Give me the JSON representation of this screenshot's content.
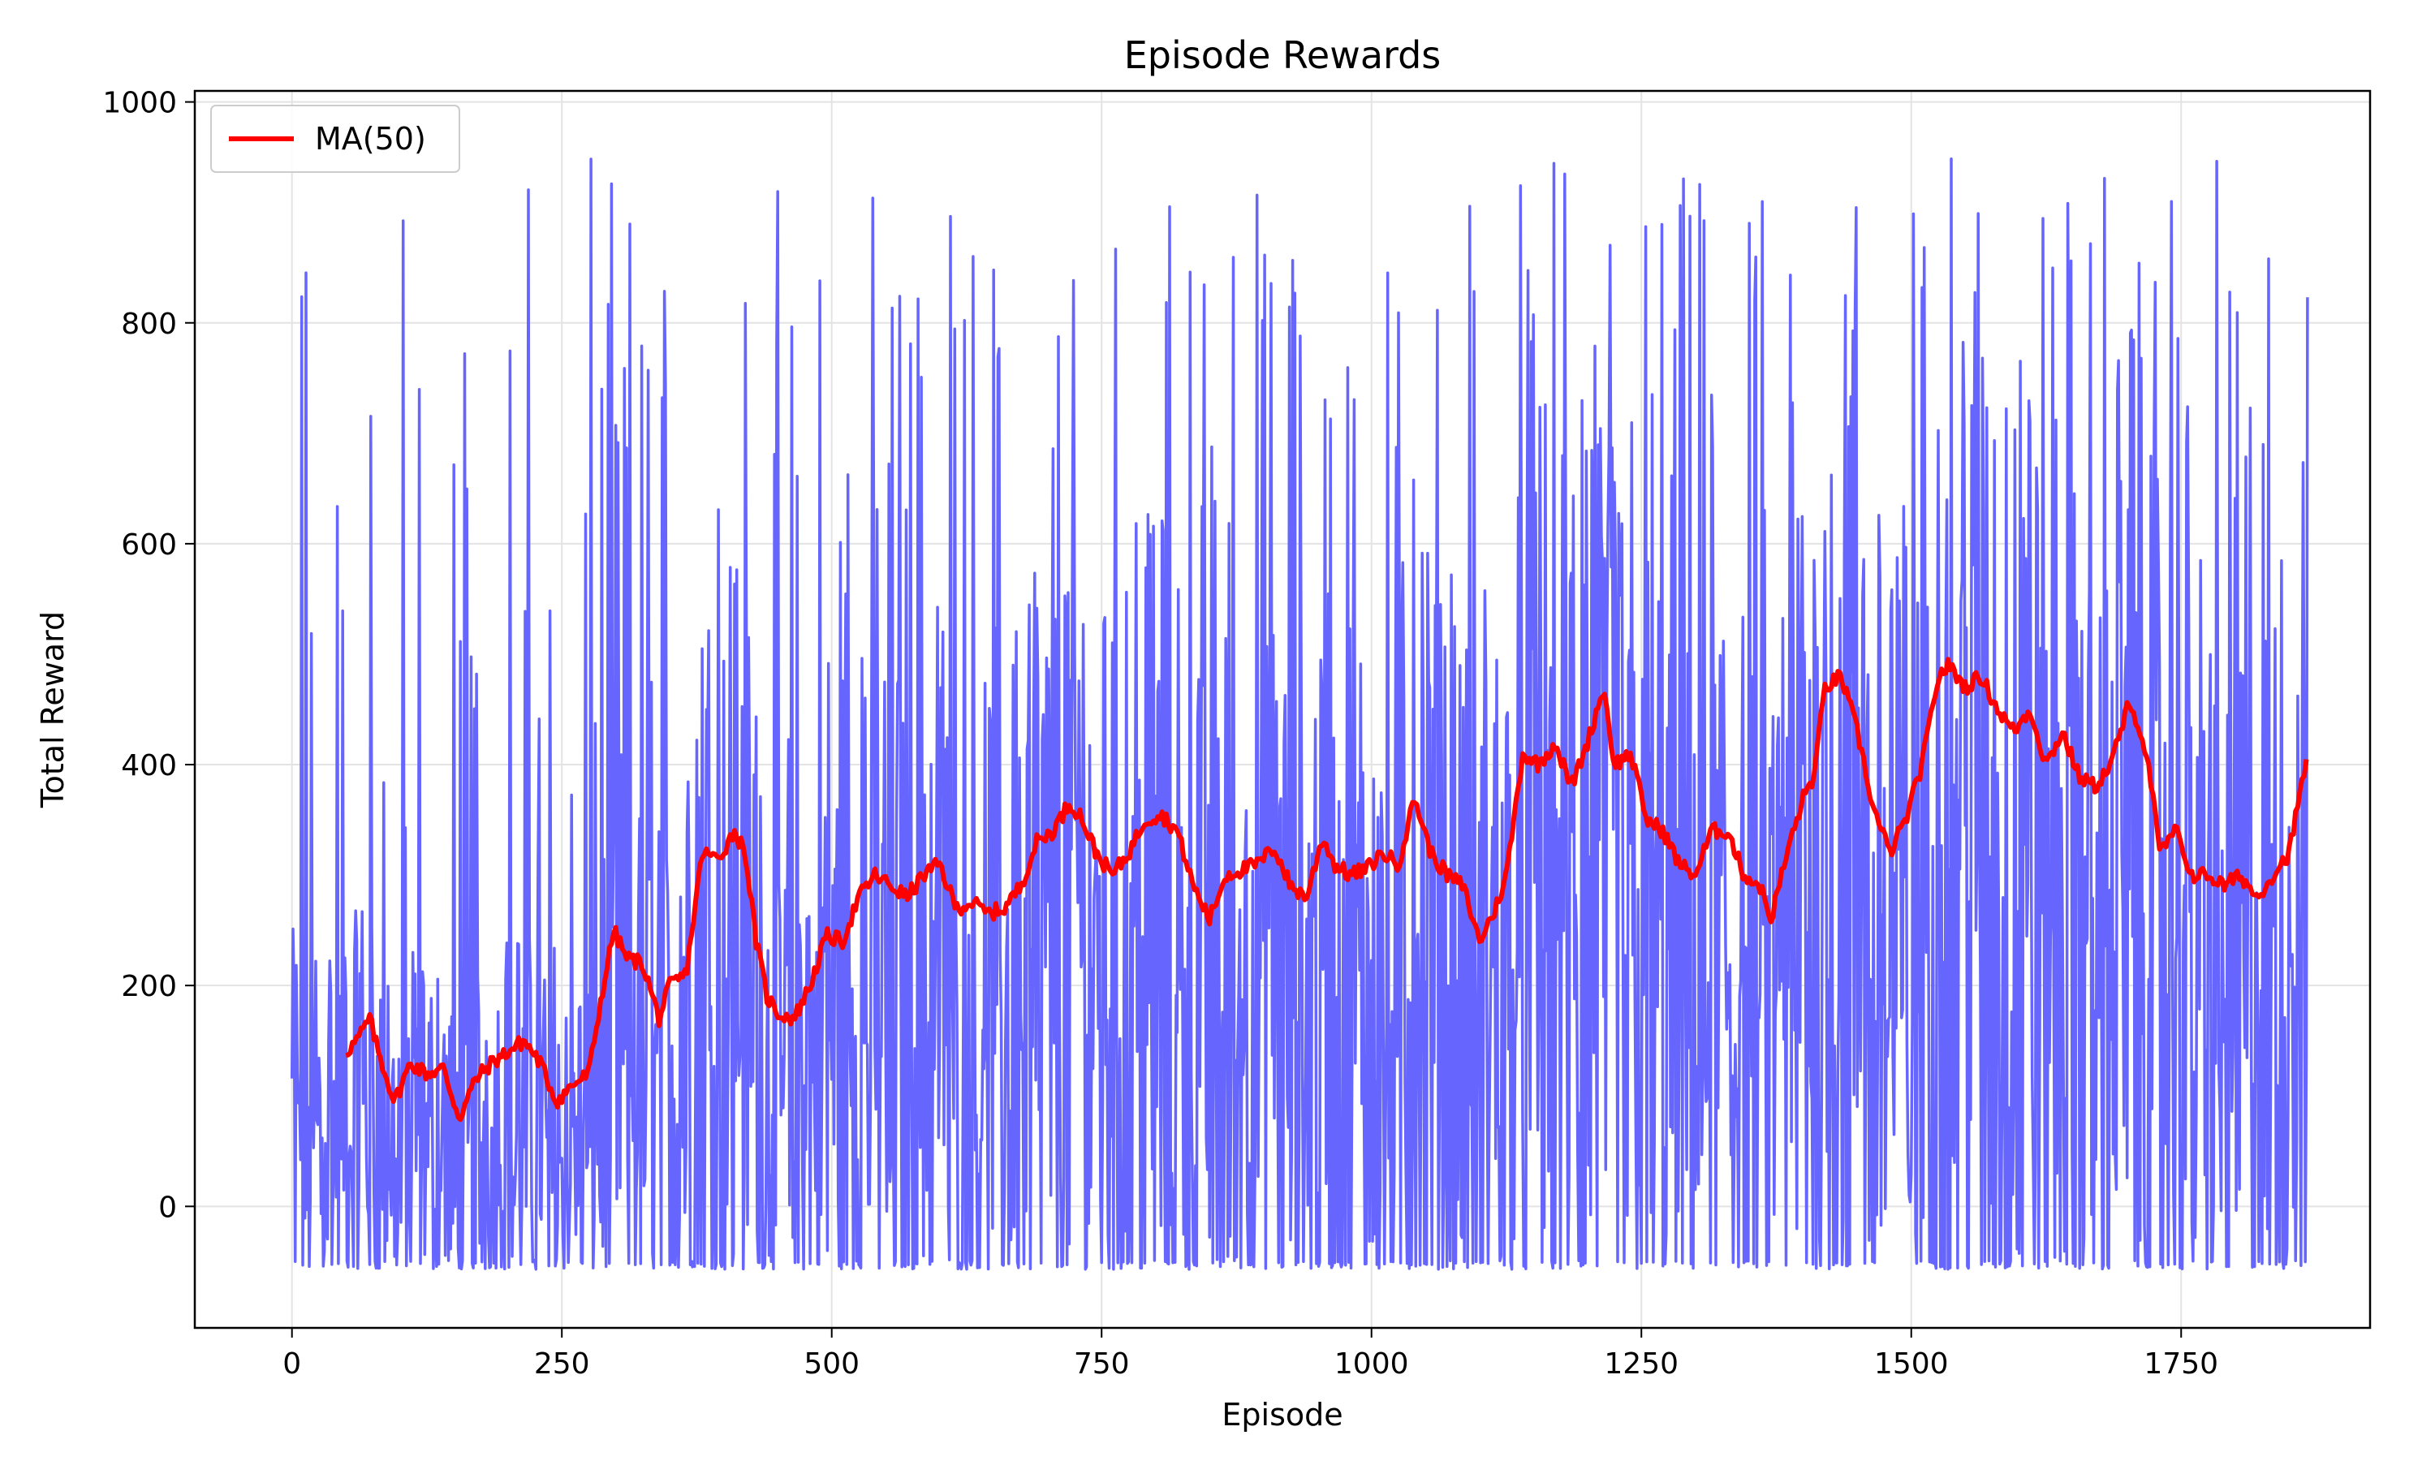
{
  "chart_data": {
    "type": "line",
    "title": "Episode Rewards",
    "xlabel": "Episode",
    "ylabel": "Total Reward",
    "xlim": [
      -90,
      1925
    ],
    "ylim": [
      -110,
      1010
    ],
    "x_ticks": [
      0,
      250,
      500,
      750,
      1000,
      1250,
      1500,
      1750
    ],
    "y_ticks": [
      0,
      200,
      400,
      600,
      800,
      1000
    ],
    "grid": true,
    "legend_position": "top-left",
    "n_episodes": 1868,
    "reward_min": -57,
    "raw_color": "#6666ff",
    "ma_color": "#ff0000",
    "series": [
      {
        "name": "",
        "kind": "raw_rewards",
        "note": "per-episode total reward, 0..1867, highly noisy between about -57 and 960"
      },
      {
        "name": "MA(50)",
        "kind": "moving_average",
        "x": [
          50,
          60,
          72,
          80,
          95,
          110,
          125,
          140,
          155,
          170,
          185,
          200,
          215,
          230,
          245,
          260,
          275,
          285,
          298,
          310,
          325,
          340,
          350,
          365,
          380,
          395,
          410,
          420,
          430,
          440,
          450,
          465,
          480,
          495,
          510,
          525,
          540,
          555,
          570,
          585,
          600,
          615,
          630,
          645,
          660,
          675,
          690,
          705,
          720,
          730,
          745,
          760,
          775,
          790,
          805,
          820,
          835,
          850,
          865,
          880,
          895,
          910,
          925,
          940,
          955,
          965,
          980,
          995,
          1010,
          1025,
          1040,
          1055,
          1070,
          1085,
          1100,
          1115,
          1125,
          1140,
          1155,
          1170,
          1185,
          1200,
          1215,
          1225,
          1240,
          1255,
          1270,
          1285,
          1300,
          1315,
          1330,
          1345,
          1360,
          1370,
          1385,
          1400,
          1410,
          1420,
          1435,
          1450,
          1465,
          1480,
          1495,
          1510,
          1525,
          1535,
          1550,
          1565,
          1580,
          1595,
          1610,
          1625,
          1640,
          1655,
          1670,
          1685,
          1700,
          1710,
          1720,
          1730,
          1745,
          1760,
          1775,
          1790,
          1805,
          1820,
          1835,
          1850,
          1867
        ],
        "values": [
          140,
          150,
          170,
          140,
          95,
          130,
          120,
          125,
          80,
          115,
          130,
          140,
          150,
          130,
          95,
          110,
          120,
          180,
          250,
          225,
          220,
          170,
          200,
          210,
          320,
          315,
          340,
          320,
          240,
          190,
          175,
          170,
          200,
          245,
          240,
          280,
          300,
          290,
          280,
          300,
          310,
          270,
          275,
          265,
          270,
          290,
          330,
          340,
          365,
          355,
          320,
          300,
          320,
          350,
          355,
          340,
          290,
          260,
          300,
          305,
          310,
          325,
          290,
          280,
          335,
          310,
          300,
          305,
          320,
          310,
          370,
          320,
          300,
          290,
          240,
          270,
          300,
          410,
          400,
          420,
          380,
          420,
          470,
          400,
          410,
          350,
          340,
          310,
          300,
          340,
          340,
          300,
          290,
          260,
          320,
          370,
          390,
          470,
          480,
          430,
          360,
          320,
          350,
          400,
          480,
          490,
          470,
          480,
          450,
          430,
          450,
          400,
          430,
          390,
          380,
          400,
          450,
          440,
          400,
          320,
          340,
          300,
          300,
          290,
          300,
          280,
          300,
          320,
          410
        ]
      }
    ]
  }
}
